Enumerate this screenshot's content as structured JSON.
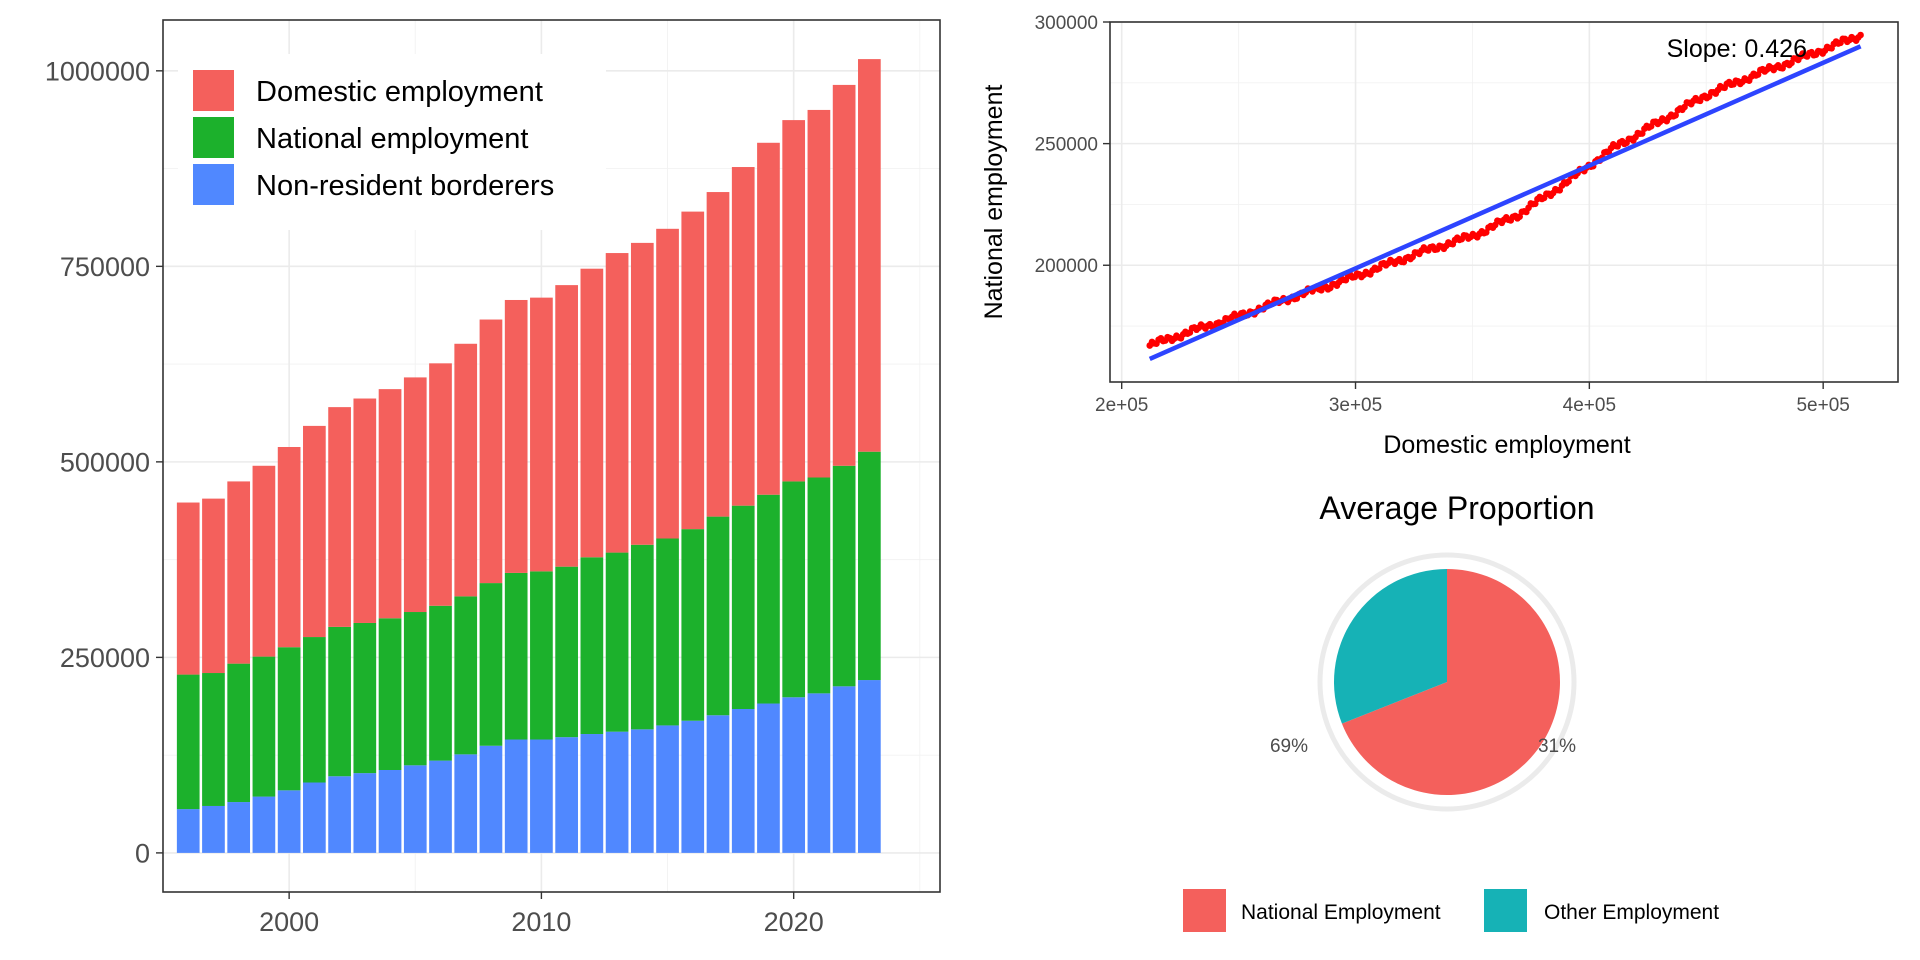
{
  "chart_data": [
    {
      "type": "bar",
      "stacked": true,
      "x": [
        1996,
        1997,
        1998,
        1999,
        2000,
        2001,
        2002,
        2003,
        2004,
        2005,
        2006,
        2007,
        2008,
        2009,
        2010,
        2011,
        2012,
        2013,
        2014,
        2015,
        2016,
        2017,
        2018,
        2019,
        2020,
        2021,
        2022,
        2023
      ],
      "series": [
        {
          "name": "Non-resident borderers",
          "color": "#5088ff",
          "values": [
            56000,
            60000,
            65000,
            72000,
            80000,
            90000,
            98000,
            102000,
            106000,
            112000,
            118000,
            126000,
            137000,
            145000,
            145000,
            148000,
            152000,
            155000,
            158000,
            163000,
            169000,
            176000,
            184000,
            191000,
            199000,
            204000,
            213000,
            221000
          ]
        },
        {
          "name": "National employment",
          "color": "#1cb12c",
          "values": [
            172000,
            170000,
            177000,
            179000,
            183000,
            186000,
            191000,
            192000,
            194000,
            196000,
            198000,
            202000,
            208000,
            213000,
            215000,
            218000,
            226000,
            229000,
            236000,
            239000,
            245000,
            254000,
            260000,
            267000,
            276000,
            276000,
            282000,
            292000
          ]
        },
        {
          "name": "Domestic employment",
          "color": "#f4605c",
          "values": [
            220000,
            223000,
            233000,
            244000,
            256000,
            270000,
            281000,
            287000,
            293000,
            300000,
            310000,
            323000,
            337000,
            349000,
            350000,
            360000,
            369000,
            383000,
            386000,
            396000,
            406000,
            415000,
            433000,
            450000,
            462000,
            470000,
            487000,
            502000
          ]
        }
      ],
      "xticks": [
        "2000",
        "2010",
        "2020"
      ],
      "yticks": [
        "0",
        "250000",
        "500000",
        "750000",
        "1000000"
      ],
      "xlim": [
        1995,
        2025.8
      ],
      "ylim": [
        -50000,
        1065000
      ],
      "legend_position": "top-left",
      "grid": true
    },
    {
      "type": "scatter",
      "xlabel": "Domestic employment",
      "ylabel": "National employment",
      "xticks": [
        "2e+05",
        "3e+05",
        "4e+05",
        "5e+05"
      ],
      "yticks": [
        "200000",
        "250000",
        "300000"
      ],
      "xlim": [
        195000,
        532000
      ],
      "ylim": [
        152000,
        300000
      ],
      "points_color": "#ff0000",
      "fit_color": "#2d44ff",
      "fit_line": {
        "x": [
          212000,
          516000
        ],
        "y": [
          161500,
          290000
        ]
      },
      "point_curve": {
        "x": [
          212000,
          230000,
          250000,
          270000,
          290000,
          310000,
          330000,
          350000,
          370000,
          390000,
          410000,
          430000,
          450000,
          470000,
          490000,
          516000
        ],
        "y": [
          167000,
          173000,
          179000,
          186000,
          192000,
          199000,
          206000,
          212000,
          221000,
          234000,
          248000,
          259000,
          270000,
          278000,
          285000,
          294500
        ]
      },
      "annotation": "Slope:  0.426",
      "grid": true
    },
    {
      "type": "pie",
      "title": "Average Proportion",
      "slices": [
        {
          "label": "National Employment",
          "value": 69,
          "color": "#f4605c",
          "pct_label": "69%"
        },
        {
          "label": "Other Employment",
          "value": 31,
          "color": "#16b2b6",
          "pct_label": "31%"
        }
      ],
      "legend_position": "bottom"
    }
  ]
}
